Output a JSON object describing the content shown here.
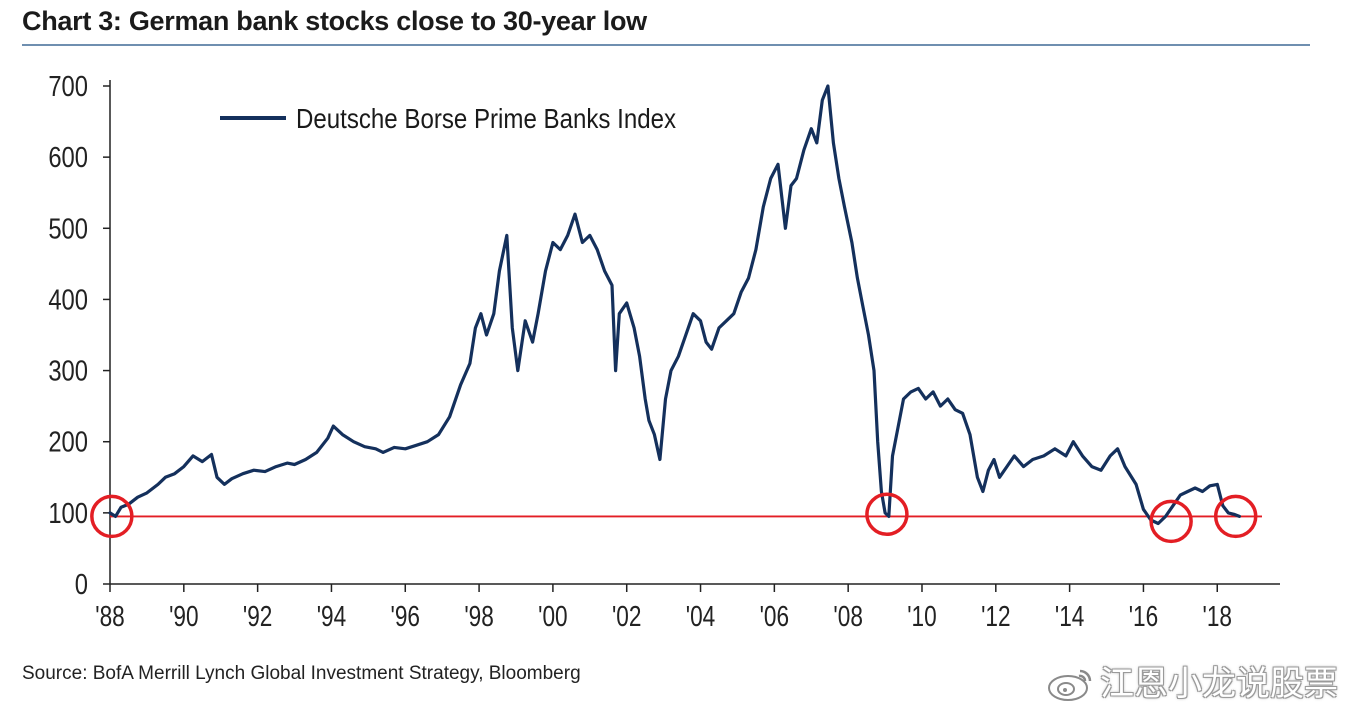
{
  "title": "Chart 3: German bank stocks close to 30-year low",
  "source": "Source:  BofA Merrill Lynch Global Investment Strategy, Bloomberg",
  "watermark": "江恩小龙说股票",
  "colors": {
    "series": "#14305c",
    "threshold": "#e31e24",
    "circle": "#e31e24",
    "axis": "#222222",
    "rule": "#6f8fb0"
  },
  "chart_data": {
    "type": "line",
    "title": "Chart 3: German bank stocks close to 30-year low",
    "xlabel": "",
    "ylabel": "",
    "xlim": [
      1988,
      2019.7
    ],
    "ylim": [
      0,
      700
    ],
    "x_ticks": [
      1988,
      1990,
      1992,
      1994,
      1996,
      1998,
      2000,
      2002,
      2004,
      2006,
      2008,
      2010,
      2012,
      2014,
      2016,
      2018
    ],
    "x_tick_labels": [
      "'88",
      "'90",
      "'92",
      "'94",
      "'96",
      "'98",
      "'00",
      "'02",
      "'04",
      "'06",
      "'08",
      "'10",
      "'12",
      "'14",
      "'16",
      "'18"
    ],
    "y_ticks": [
      0,
      100,
      200,
      300,
      400,
      500,
      600,
      700
    ],
    "y_tick_labels": [
      "0",
      "100",
      "200",
      "300",
      "400",
      "500",
      "600",
      "700"
    ],
    "legend": {
      "placement": "top-left"
    },
    "series": [
      {
        "name": "Deutsche Borse Prime Banks Index",
        "x": [
          1988.0,
          1988.15,
          1988.3,
          1988.5,
          1988.75,
          1989.0,
          1989.3,
          1989.5,
          1989.75,
          1990.0,
          1990.25,
          1990.5,
          1990.75,
          1990.9,
          1991.1,
          1991.3,
          1991.6,
          1991.9,
          1992.2,
          1992.5,
          1992.8,
          1993.0,
          1993.3,
          1993.6,
          1993.9,
          1994.05,
          1994.3,
          1994.6,
          1994.9,
          1995.2,
          1995.4,
          1995.7,
          1996.0,
          1996.3,
          1996.6,
          1996.9,
          1997.2,
          1997.5,
          1997.75,
          1997.9,
          1998.05,
          1998.2,
          1998.4,
          1998.55,
          1998.75,
          1998.9,
          1999.05,
          1999.25,
          1999.45,
          1999.6,
          1999.8,
          2000.0,
          2000.2,
          2000.4,
          2000.6,
          2000.8,
          2001.0,
          2001.2,
          2001.4,
          2001.6,
          2001.7,
          2001.8,
          2002.0,
          2002.2,
          2002.35,
          2002.5,
          2002.6,
          2002.75,
          2002.9,
          2003.05,
          2003.2,
          2003.4,
          2003.6,
          2003.8,
          2004.0,
          2004.15,
          2004.3,
          2004.5,
          2004.7,
          2004.9,
          2005.1,
          2005.3,
          2005.5,
          2005.7,
          2005.9,
          2006.1,
          2006.3,
          2006.45,
          2006.6,
          2006.8,
          2007.0,
          2007.15,
          2007.3,
          2007.45,
          2007.6,
          2007.75,
          2007.9,
          2008.1,
          2008.25,
          2008.4,
          2008.55,
          2008.7,
          2008.8,
          2008.9,
          2009.0,
          2009.1,
          2009.2,
          2009.35,
          2009.5,
          2009.7,
          2009.9,
          2010.1,
          2010.3,
          2010.5,
          2010.7,
          2010.9,
          2011.1,
          2011.3,
          2011.5,
          2011.65,
          2011.8,
          2011.95,
          2012.1,
          2012.3,
          2012.5,
          2012.75,
          2013.0,
          2013.3,
          2013.6,
          2013.9,
          2014.1,
          2014.35,
          2014.6,
          2014.85,
          2015.1,
          2015.3,
          2015.5,
          2015.8,
          2016.0,
          2016.2,
          2016.4,
          2016.6,
          2016.8,
          2017.0,
          2017.2,
          2017.4,
          2017.6,
          2017.8,
          2018.0,
          2018.15,
          2018.3,
          2018.45,
          2018.6
        ],
        "y": [
          100,
          95,
          108,
          112,
          122,
          128,
          140,
          150,
          155,
          165,
          180,
          172,
          182,
          150,
          140,
          148,
          155,
          160,
          158,
          165,
          170,
          168,
          175,
          185,
          205,
          222,
          210,
          200,
          193,
          190,
          185,
          192,
          190,
          195,
          200,
          210,
          235,
          280,
          310,
          360,
          380,
          350,
          380,
          440,
          490,
          360,
          300,
          370,
          340,
          380,
          440,
          480,
          470,
          490,
          520,
          480,
          490,
          470,
          440,
          420,
          300,
          380,
          395,
          360,
          320,
          260,
          230,
          210,
          175,
          260,
          300,
          320,
          350,
          380,
          370,
          340,
          330,
          360,
          370,
          380,
          410,
          430,
          470,
          530,
          570,
          590,
          500,
          560,
          570,
          610,
          640,
          620,
          680,
          700,
          620,
          570,
          530,
          480,
          430,
          390,
          350,
          300,
          200,
          130,
          100,
          95,
          180,
          220,
          260,
          270,
          275,
          260,
          270,
          250,
          260,
          245,
          240,
          210,
          150,
          130,
          160,
          175,
          150,
          165,
          180,
          165,
          175,
          180,
          190,
          180,
          200,
          180,
          165,
          160,
          180,
          190,
          165,
          140,
          105,
          90,
          85,
          95,
          110,
          125,
          130,
          135,
          130,
          138,
          140,
          110,
          100,
          98,
          95
        ]
      }
    ],
    "reference_lines": [
      {
        "axis": "y",
        "value": 95
      }
    ],
    "highlight_markers": [
      {
        "x": 1988.05,
        "y": 95
      },
      {
        "x": 2009.05,
        "y": 98
      },
      {
        "x": 2016.75,
        "y": 88
      },
      {
        "x": 2018.5,
        "y": 95
      }
    ]
  }
}
